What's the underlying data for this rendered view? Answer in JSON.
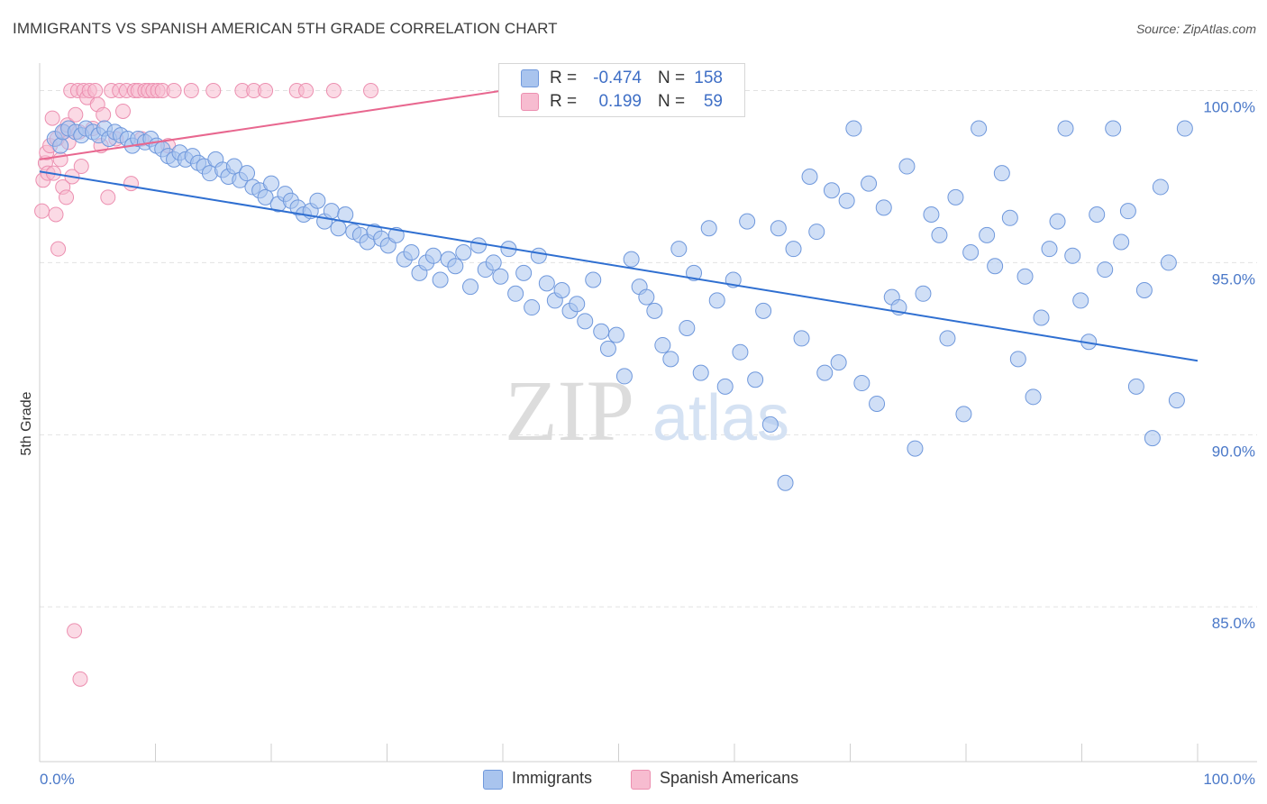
{
  "header": {
    "title": "IMMIGRANTS VS SPANISH AMERICAN 5TH GRADE CORRELATION CHART",
    "source": "Source: ZipAtlas.com"
  },
  "watermark": {
    "zip": "ZIP",
    "atlas": "atlas"
  },
  "legend_top": {
    "rows": [
      {
        "r_label": "R =",
        "r_value": "-0.474",
        "n_label": "N =",
        "n_value": "158"
      },
      {
        "r_label": "R =",
        "r_value": "0.199",
        "n_label": "N =",
        "n_value": "59"
      }
    ]
  },
  "legend_bottom": {
    "items": [
      "Immigrants",
      "Spanish Americans"
    ]
  },
  "colors": {
    "immigrants_fill": "#a9c4ee",
    "immigrants_stroke": "#6f98dc",
    "immigrants_line": "#2f6fd1",
    "spanish_fill": "#f7bcd0",
    "spanish_stroke": "#ec8fb0",
    "spanish_line": "#e8678f",
    "tick_text": "#4a78c8",
    "grid": "#e2e2e2"
  },
  "chart_data": {
    "type": "scatter",
    "title": "IMMIGRANTS VS SPANISH AMERICAN 5TH GRADE CORRELATION CHART",
    "xlabel": "",
    "ylabel": "5th Grade",
    "xlim": [
      0,
      100
    ],
    "ylim": [
      80.5,
      100.8
    ],
    "x_tick_labels": [
      "0.0%",
      "100.0%"
    ],
    "y_ticks": [
      85,
      90,
      95,
      100
    ],
    "y_tick_labels": [
      "85.0%",
      "90.0%",
      "95.0%",
      "100.0%"
    ],
    "grid": "horizontal dashed",
    "series": [
      {
        "name": "Immigrants",
        "r": -0.474,
        "n": 158,
        "trend": {
          "x": [
            0,
            100
          ],
          "y": [
            97.65,
            92.15
          ]
        },
        "points": [
          [
            1.3,
            98.6
          ],
          [
            1.8,
            98.4
          ],
          [
            2.0,
            98.8
          ],
          [
            2.5,
            98.9
          ],
          [
            3.1,
            98.8
          ],
          [
            3.6,
            98.7
          ],
          [
            4.0,
            98.9
          ],
          [
            4.6,
            98.8
          ],
          [
            5.1,
            98.7
          ],
          [
            5.6,
            98.9
          ],
          [
            6.0,
            98.6
          ],
          [
            6.5,
            98.8
          ],
          [
            7.0,
            98.7
          ],
          [
            7.6,
            98.6
          ],
          [
            8.0,
            98.4
          ],
          [
            8.5,
            98.6
          ],
          [
            9.1,
            98.5
          ],
          [
            9.6,
            98.6
          ],
          [
            10.1,
            98.4
          ],
          [
            10.6,
            98.3
          ],
          [
            11.1,
            98.1
          ],
          [
            11.6,
            98.0
          ],
          [
            12.1,
            98.2
          ],
          [
            12.6,
            98.0
          ],
          [
            13.2,
            98.1
          ],
          [
            13.7,
            97.9
          ],
          [
            14.2,
            97.8
          ],
          [
            14.7,
            97.6
          ],
          [
            15.2,
            98.0
          ],
          [
            15.8,
            97.7
          ],
          [
            16.3,
            97.5
          ],
          [
            16.8,
            97.8
          ],
          [
            17.3,
            97.4
          ],
          [
            17.9,
            97.6
          ],
          [
            18.4,
            97.2
          ],
          [
            19.0,
            97.1
          ],
          [
            19.5,
            96.9
          ],
          [
            20.0,
            97.3
          ],
          [
            20.6,
            96.7
          ],
          [
            21.2,
            97.0
          ],
          [
            21.7,
            96.8
          ],
          [
            22.3,
            96.6
          ],
          [
            22.8,
            96.4
          ],
          [
            23.4,
            96.5
          ],
          [
            24.0,
            96.8
          ],
          [
            24.6,
            96.2
          ],
          [
            25.2,
            96.5
          ],
          [
            25.8,
            96.0
          ],
          [
            26.4,
            96.4
          ],
          [
            27.1,
            95.9
          ],
          [
            27.7,
            95.8
          ],
          [
            28.3,
            95.6
          ],
          [
            28.9,
            95.9
          ],
          [
            29.5,
            95.7
          ],
          [
            30.1,
            95.5
          ],
          [
            30.8,
            95.8
          ],
          [
            31.5,
            95.1
          ],
          [
            32.1,
            95.3
          ],
          [
            32.8,
            94.7
          ],
          [
            33.4,
            95.0
          ],
          [
            34.0,
            95.2
          ],
          [
            34.6,
            94.5
          ],
          [
            35.3,
            95.1
          ],
          [
            35.9,
            94.9
          ],
          [
            36.6,
            95.3
          ],
          [
            37.2,
            94.3
          ],
          [
            37.9,
            95.5
          ],
          [
            38.5,
            94.8
          ],
          [
            39.2,
            95.0
          ],
          [
            39.8,
            94.6
          ],
          [
            40.5,
            95.4
          ],
          [
            41.1,
            94.1
          ],
          [
            41.8,
            94.7
          ],
          [
            42.5,
            93.7
          ],
          [
            43.1,
            95.2
          ],
          [
            43.8,
            94.4
          ],
          [
            44.5,
            93.9
          ],
          [
            45.1,
            94.2
          ],
          [
            45.8,
            93.6
          ],
          [
            46.4,
            93.8
          ],
          [
            47.1,
            93.3
          ],
          [
            47.8,
            94.5
          ],
          [
            48.5,
            93.0
          ],
          [
            49.1,
            92.5
          ],
          [
            49.8,
            92.9
          ],
          [
            50.5,
            91.7
          ],
          [
            51.1,
            95.1
          ],
          [
            51.8,
            94.3
          ],
          [
            52.4,
            94.0
          ],
          [
            53.1,
            93.6
          ],
          [
            53.8,
            92.6
          ],
          [
            54.5,
            92.2
          ],
          [
            55.2,
            95.4
          ],
          [
            55.9,
            93.1
          ],
          [
            56.5,
            94.7
          ],
          [
            57.1,
            91.8
          ],
          [
            57.8,
            96.0
          ],
          [
            58.5,
            93.9
          ],
          [
            59.2,
            91.4
          ],
          [
            59.9,
            94.5
          ],
          [
            60.5,
            92.4
          ],
          [
            61.1,
            96.2
          ],
          [
            61.8,
            91.6
          ],
          [
            62.5,
            93.6
          ],
          [
            63.1,
            90.3
          ],
          [
            63.8,
            96.0
          ],
          [
            64.4,
            88.6
          ],
          [
            65.1,
            95.4
          ],
          [
            65.8,
            92.8
          ],
          [
            66.5,
            97.5
          ],
          [
            67.1,
            95.9
          ],
          [
            67.8,
            91.8
          ],
          [
            68.4,
            97.1
          ],
          [
            69.0,
            92.1
          ],
          [
            69.7,
            96.8
          ],
          [
            70.3,
            98.9
          ],
          [
            71.0,
            91.5
          ],
          [
            71.6,
            97.3
          ],
          [
            72.3,
            90.9
          ],
          [
            72.9,
            96.6
          ],
          [
            73.6,
            94.0
          ],
          [
            74.2,
            93.7
          ],
          [
            74.9,
            97.8
          ],
          [
            75.6,
            89.6
          ],
          [
            76.3,
            94.1
          ],
          [
            77.0,
            96.4
          ],
          [
            77.7,
            95.8
          ],
          [
            78.4,
            92.8
          ],
          [
            79.1,
            96.9
          ],
          [
            79.8,
            90.6
          ],
          [
            80.4,
            95.3
          ],
          [
            81.1,
            98.9
          ],
          [
            81.8,
            95.8
          ],
          [
            82.5,
            94.9
          ],
          [
            83.1,
            97.6
          ],
          [
            83.8,
            96.3
          ],
          [
            84.5,
            92.2
          ],
          [
            85.1,
            94.6
          ],
          [
            85.8,
            91.1
          ],
          [
            86.5,
            93.4
          ],
          [
            87.2,
            95.4
          ],
          [
            87.9,
            96.2
          ],
          [
            88.6,
            98.9
          ],
          [
            89.2,
            95.2
          ],
          [
            89.9,
            93.9
          ],
          [
            90.6,
            92.7
          ],
          [
            91.3,
            96.4
          ],
          [
            92.0,
            94.8
          ],
          [
            92.7,
            98.9
          ],
          [
            93.4,
            95.6
          ],
          [
            94.0,
            96.5
          ],
          [
            94.7,
            91.4
          ],
          [
            95.4,
            94.2
          ],
          [
            96.1,
            89.9
          ],
          [
            96.8,
            97.2
          ],
          [
            97.5,
            95.0
          ],
          [
            98.2,
            91.0
          ],
          [
            98.9,
            98.9
          ]
        ]
      },
      {
        "name": "Spanish Americans",
        "r": 0.199,
        "n": 59,
        "trend": {
          "x": [
            0,
            40
          ],
          "y": [
            98.0,
            100.0
          ]
        },
        "points": [
          [
            0.2,
            96.5
          ],
          [
            0.3,
            97.4
          ],
          [
            0.5,
            97.9
          ],
          [
            0.6,
            98.2
          ],
          [
            0.7,
            97.6
          ],
          [
            0.9,
            98.4
          ],
          [
            1.1,
            99.2
          ],
          [
            1.2,
            97.6
          ],
          [
            1.4,
            96.4
          ],
          [
            1.5,
            98.6
          ],
          [
            1.6,
            95.4
          ],
          [
            1.8,
            98.0
          ],
          [
            2.0,
            97.2
          ],
          [
            2.1,
            98.8
          ],
          [
            2.3,
            96.9
          ],
          [
            2.4,
            99.0
          ],
          [
            2.5,
            98.5
          ],
          [
            2.7,
            100.0
          ],
          [
            2.8,
            97.5
          ],
          [
            3.0,
            84.3
          ],
          [
            3.1,
            99.3
          ],
          [
            3.3,
            100.0
          ],
          [
            3.4,
            98.8
          ],
          [
            3.5,
            82.9
          ],
          [
            3.6,
            97.8
          ],
          [
            3.8,
            100.0
          ],
          [
            4.1,
            99.8
          ],
          [
            4.3,
            100.0
          ],
          [
            4.6,
            98.9
          ],
          [
            4.8,
            100.0
          ],
          [
            5.0,
            99.6
          ],
          [
            5.3,
            98.4
          ],
          [
            5.5,
            99.3
          ],
          [
            5.9,
            96.9
          ],
          [
            6.2,
            100.0
          ],
          [
            6.6,
            98.6
          ],
          [
            6.9,
            100.0
          ],
          [
            7.2,
            99.4
          ],
          [
            7.5,
            100.0
          ],
          [
            7.9,
            97.3
          ],
          [
            8.2,
            100.0
          ],
          [
            8.5,
            100.0
          ],
          [
            8.8,
            98.6
          ],
          [
            9.1,
            100.0
          ],
          [
            9.4,
            100.0
          ],
          [
            9.8,
            100.0
          ],
          [
            10.2,
            100.0
          ],
          [
            10.6,
            100.0
          ],
          [
            11.1,
            98.4
          ],
          [
            11.6,
            100.0
          ],
          [
            13.1,
            100.0
          ],
          [
            15.0,
            100.0
          ],
          [
            17.5,
            100.0
          ],
          [
            18.5,
            100.0
          ],
          [
            19.5,
            100.0
          ],
          [
            22.2,
            100.0
          ],
          [
            23.0,
            100.0
          ],
          [
            25.4,
            100.0
          ],
          [
            28.6,
            100.0
          ]
        ]
      }
    ]
  }
}
